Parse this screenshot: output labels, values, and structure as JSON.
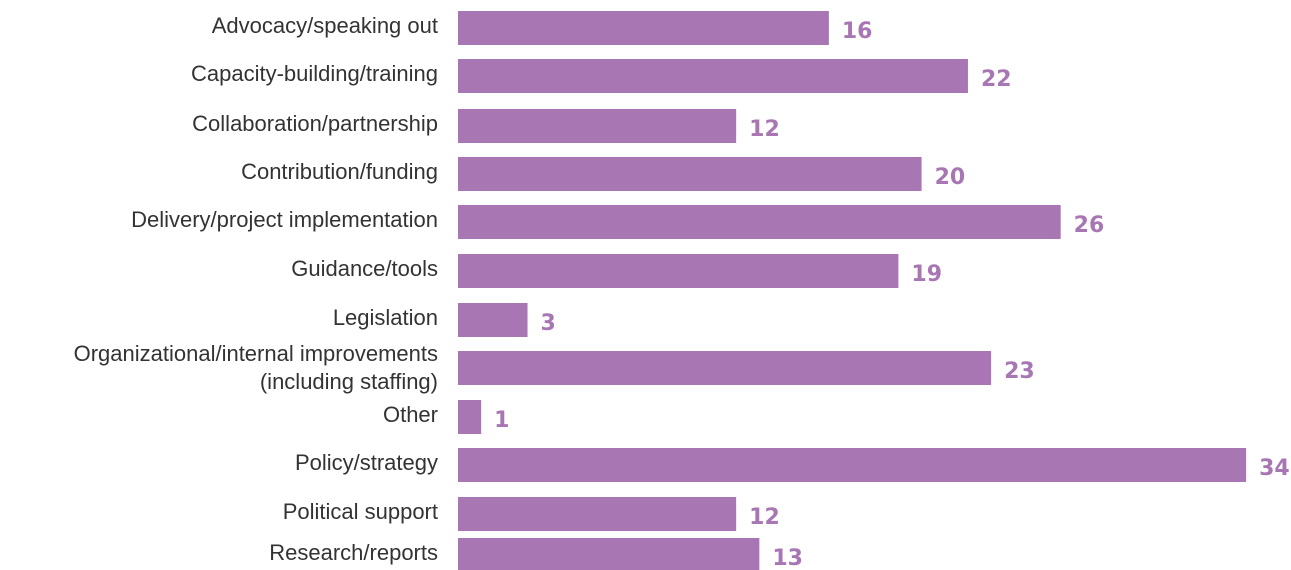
{
  "chart_data": {
    "type": "bar",
    "orientation": "horizontal",
    "title": "",
    "xlabel": "",
    "ylabel": "",
    "categories": [
      [
        "Advocacy/speaking out"
      ],
      [
        "Capacity-building/training"
      ],
      [
        "Collaboration/partnership"
      ],
      [
        "Contribution/funding"
      ],
      [
        "Delivery/project implementation"
      ],
      [
        "Guidance/tools"
      ],
      [
        "Legislation"
      ],
      [
        "Organizational/internal improvements",
        "(including staffing)"
      ],
      [
        "Other"
      ],
      [
        "Policy/strategy"
      ],
      [
        "Political support"
      ],
      [
        "Research/reports"
      ]
    ],
    "values": [
      16,
      22,
      12,
      20,
      26,
      19,
      3,
      23,
      1,
      34,
      12,
      13
    ],
    "xlim": [
      0,
      34
    ],
    "grid": false,
    "legend": "none",
    "bar_color": "#a877b3",
    "value_label_color": "#a877b3",
    "category_label_color": "#333333"
  }
}
